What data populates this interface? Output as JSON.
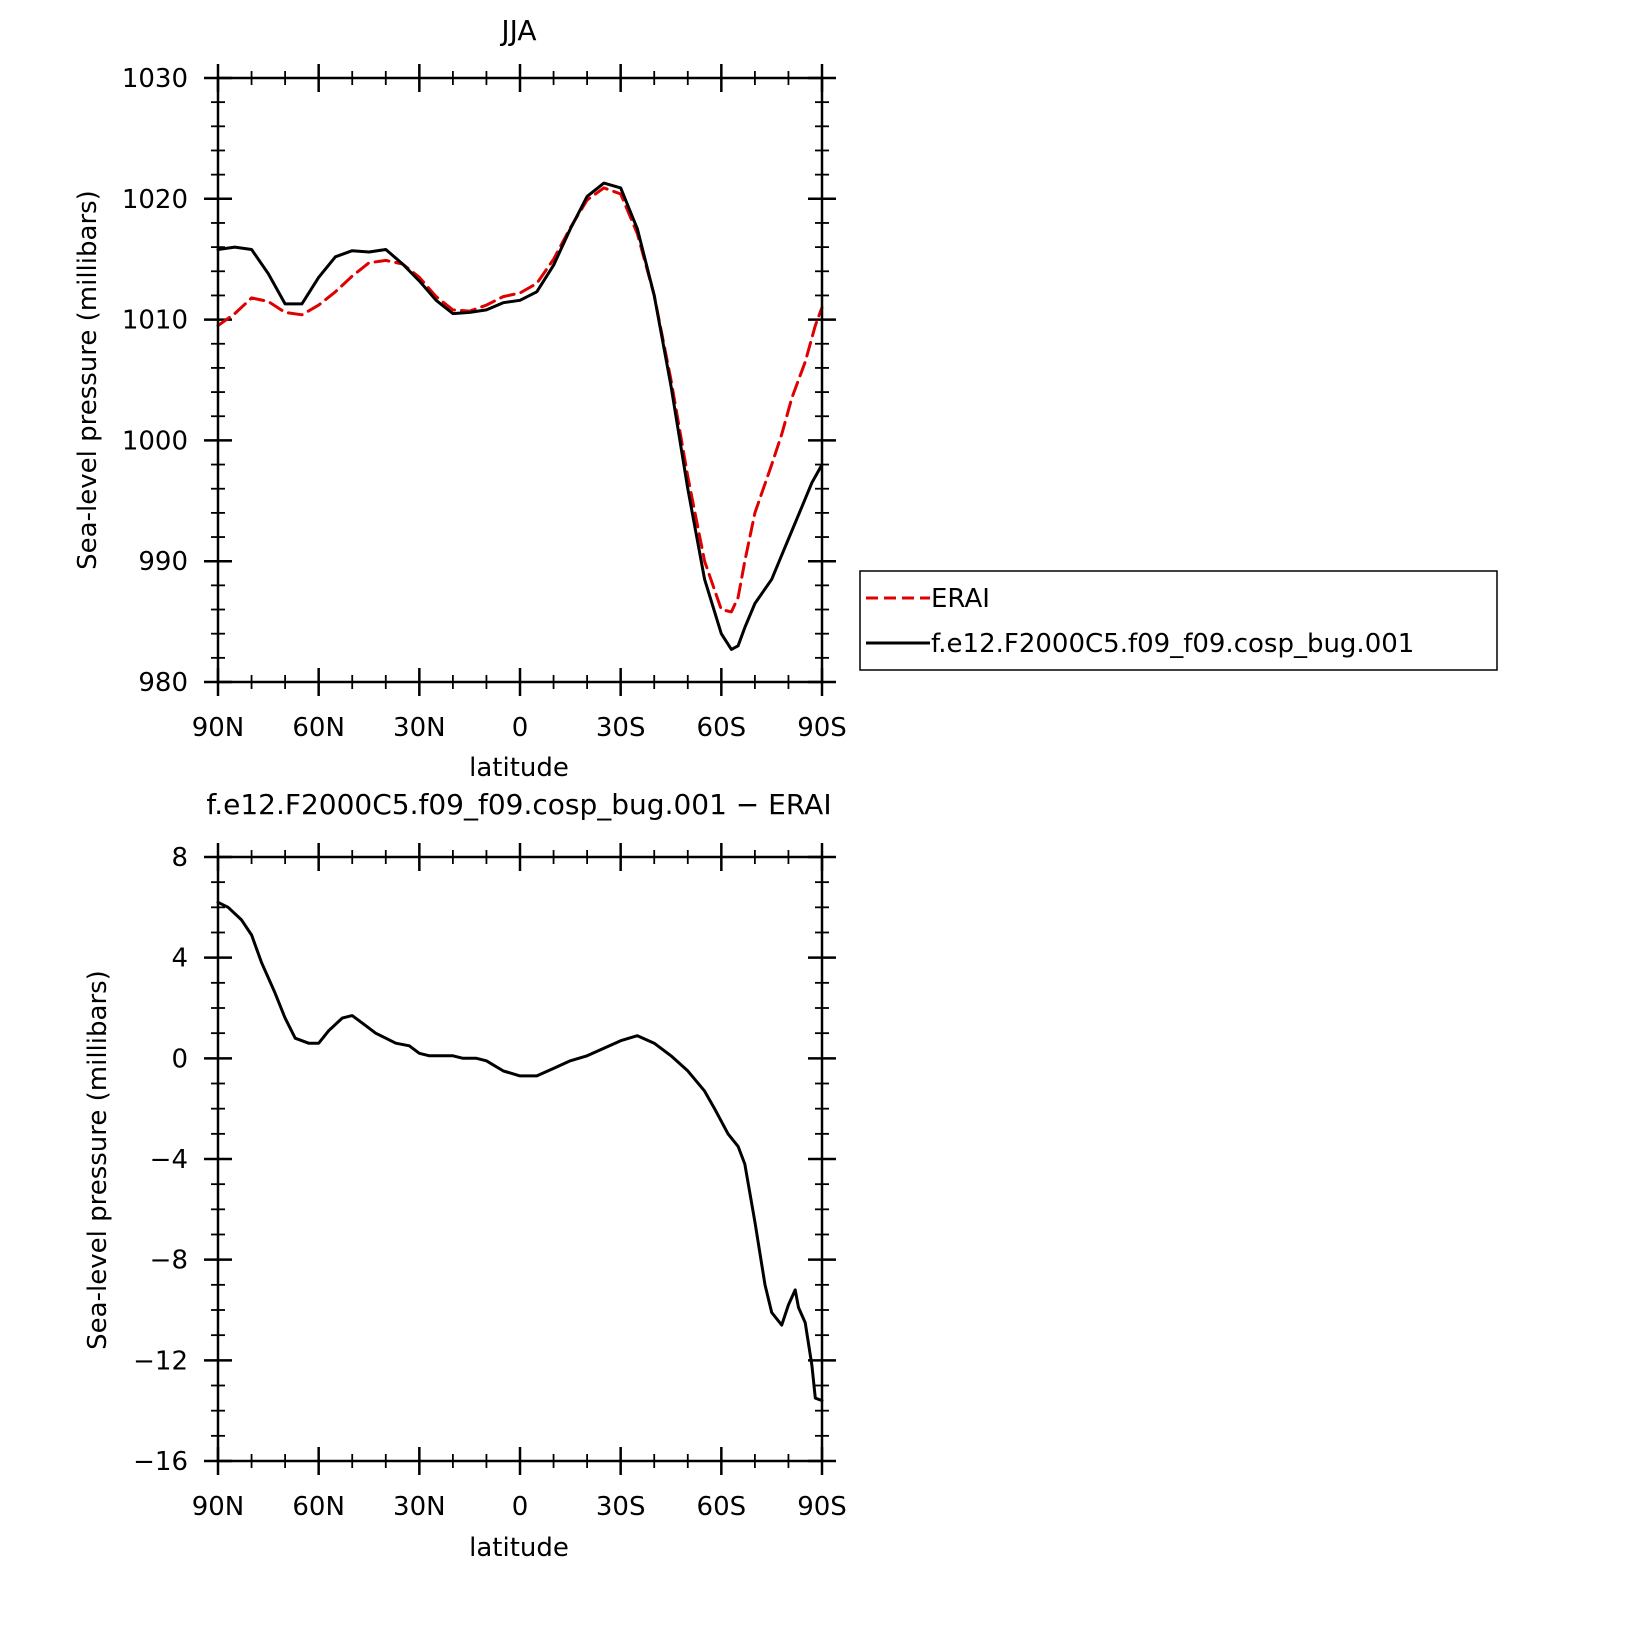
{
  "chart_data": [
    {
      "type": "line",
      "title": "JJA",
      "xlabel": "latitude",
      "ylabel": "Sea-level pressure (millibars)",
      "xlim": [
        90,
        -90
      ],
      "ylim": [
        980,
        1030
      ],
      "x_ticks": [
        {
          "value": 90,
          "label": "90N"
        },
        {
          "value": 60,
          "label": "60N"
        },
        {
          "value": 30,
          "label": "30N"
        },
        {
          "value": 0,
          "label": "0"
        },
        {
          "value": -30,
          "label": "30S"
        },
        {
          "value": -60,
          "label": "60S"
        },
        {
          "value": -90,
          "label": "90S"
        }
      ],
      "y_ticks": [
        {
          "value": 1030,
          "label": "1030"
        },
        {
          "value": 1020,
          "label": "1020"
        },
        {
          "value": 1010,
          "label": "1010"
        },
        {
          "value": 1000,
          "label": "1000"
        },
        {
          "value": 990,
          "label": "990"
        },
        {
          "value": 980,
          "label": "980"
        }
      ],
      "legend_position": "right-middle",
      "series": [
        {
          "name": "ERAI",
          "color": "#e00000",
          "dash": true,
          "x": [
            90,
            85,
            80,
            75,
            70,
            65,
            60,
            55,
            50,
            45,
            40,
            35,
            30,
            25,
            20,
            15,
            10,
            5,
            0,
            -5,
            -10,
            -15,
            -20,
            -25,
            -30,
            -35,
            -40,
            -45,
            -50,
            -55,
            -60,
            -63,
            -65,
            -67,
            -70,
            -75,
            -78,
            -81,
            -85,
            -88,
            -90
          ],
          "values": [
            1009.5,
            1010.5,
            1011.8,
            1011.5,
            1010.6,
            1010.4,
            1011.2,
            1012.3,
            1013.6,
            1014.7,
            1014.9,
            1014.6,
            1013.5,
            1011.9,
            1010.8,
            1010.7,
            1011.2,
            1011.9,
            1012.2,
            1013.0,
            1015.0,
            1017.6,
            1019.9,
            1020.9,
            1020.4,
            1017.1,
            1012.0,
            1005.0,
            997.0,
            990.0,
            986.0,
            985.8,
            987.0,
            990.0,
            994.0,
            998.0,
            1000.5,
            1003.5,
            1006.5,
            1009.5,
            1011.0
          ]
        },
        {
          "name": "f.e12.F2000C5.f09_f09.cosp_bug.001",
          "color": "#000000",
          "dash": false,
          "x": [
            90,
            85,
            80,
            75,
            70,
            65,
            60,
            55,
            50,
            45,
            40,
            35,
            30,
            25,
            20,
            15,
            10,
            5,
            0,
            -5,
            -10,
            -15,
            -20,
            -25,
            -30,
            -35,
            -40,
            -45,
            -50,
            -55,
            -60,
            -63,
            -65,
            -67,
            -70,
            -75,
            -78,
            -81,
            -84,
            -87,
            -90
          ],
          "values": [
            1015.8,
            1016.0,
            1015.8,
            1013.8,
            1011.3,
            1011.3,
            1013.5,
            1015.2,
            1015.7,
            1015.6,
            1015.8,
            1014.6,
            1013.2,
            1011.6,
            1010.5,
            1010.6,
            1010.8,
            1011.4,
            1011.6,
            1012.3,
            1014.5,
            1017.5,
            1020.2,
            1021.3,
            1020.9,
            1017.5,
            1012.0,
            1004.5,
            996.0,
            988.5,
            984.0,
            982.7,
            983.0,
            984.5,
            986.5,
            988.5,
            990.5,
            992.5,
            994.5,
            996.5,
            998.0
          ]
        }
      ]
    },
    {
      "type": "line",
      "title": "f.e12.F2000C5.f09_f09.cosp_bug.001 − ERAI",
      "xlabel": "latitude",
      "ylabel": "Sea-level pressure (millibars)",
      "xlim": [
        90,
        -90
      ],
      "ylim": [
        -16,
        8
      ],
      "x_ticks": [
        {
          "value": 90,
          "label": "90N"
        },
        {
          "value": 60,
          "label": "60N"
        },
        {
          "value": 30,
          "label": "30N"
        },
        {
          "value": 0,
          "label": "0"
        },
        {
          "value": -30,
          "label": "30S"
        },
        {
          "value": -60,
          "label": "60S"
        },
        {
          "value": -90,
          "label": "90S"
        }
      ],
      "y_ticks": [
        {
          "value": 8,
          "label": "8"
        },
        {
          "value": 4,
          "label": "4"
        },
        {
          "value": 0,
          "label": "0"
        },
        {
          "value": -4,
          "label": "−4"
        },
        {
          "value": -8,
          "label": "−8"
        },
        {
          "value": -12,
          "label": "−12"
        },
        {
          "value": -16,
          "label": "−16"
        }
      ],
      "series": [
        {
          "color": "#000000",
          "dash": false,
          "x": [
            90,
            87,
            83,
            80,
            77,
            73,
            70,
            67,
            63,
            60,
            57,
            53,
            50,
            47,
            43,
            40,
            37,
            33,
            30,
            27,
            23,
            20,
            17,
            13,
            10,
            5,
            0,
            -5,
            -10,
            -15,
            -20,
            -25,
            -30,
            -35,
            -40,
            -45,
            -50,
            -55,
            -58,
            -62,
            -65,
            -67,
            -70,
            -73,
            -75,
            -78,
            -80,
            -82,
            -83,
            -85,
            -87,
            -88,
            -90
          ],
          "values": [
            6.2,
            6.0,
            5.5,
            4.9,
            3.8,
            2.6,
            1.6,
            0.8,
            0.6,
            0.6,
            1.1,
            1.6,
            1.7,
            1.4,
            1.0,
            0.8,
            0.6,
            0.5,
            0.2,
            0.1,
            0.1,
            0.1,
            0.0,
            0.0,
            -0.1,
            -0.5,
            -0.7,
            -0.7,
            -0.4,
            -0.1,
            0.1,
            0.4,
            0.7,
            0.9,
            0.6,
            0.1,
            -0.5,
            -1.3,
            -2.0,
            -3.0,
            -3.5,
            -4.2,
            -6.5,
            -9.0,
            -10.1,
            -10.6,
            -9.8,
            -9.2,
            -9.9,
            -10.5,
            -12.2,
            -13.5,
            -13.6
          ]
        }
      ]
    }
  ]
}
